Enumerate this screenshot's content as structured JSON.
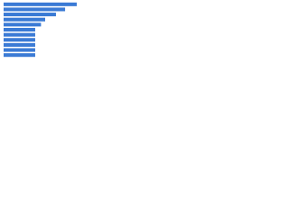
{
  "chart_data": {
    "type": "bar",
    "orientation": "horizontal",
    "categories": [
      null,
      null,
      null,
      null,
      null,
      null,
      null,
      null,
      null,
      null,
      null
    ],
    "values": [
      88,
      74,
      63,
      50,
      45,
      38,
      38,
      38,
      38,
      38,
      38
    ],
    "color": "#3a7ad5",
    "xlim": [
      0,
      100
    ]
  }
}
